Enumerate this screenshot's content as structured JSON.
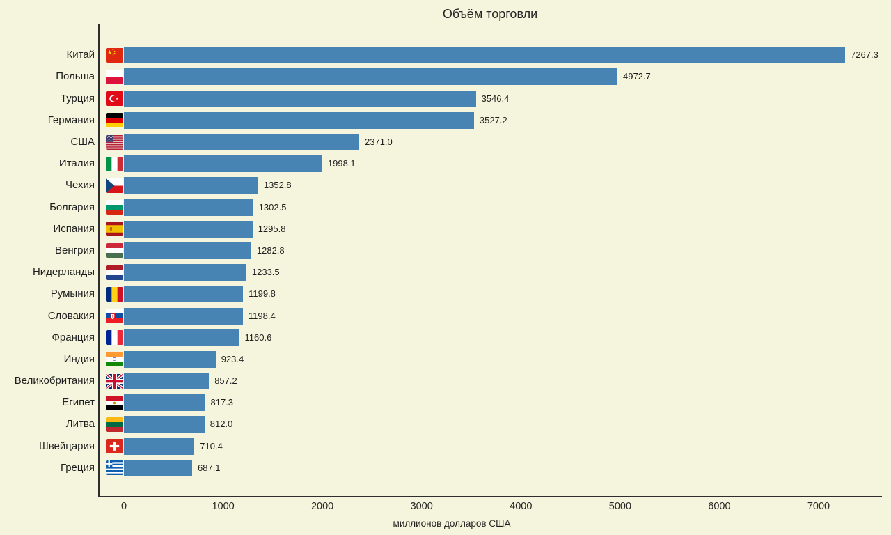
{
  "chart_data": {
    "type": "bar",
    "orientation": "horizontal",
    "title": "Объём торговли",
    "xlabel": "миллионов долларов США",
    "xticks": [
      0,
      1000,
      2000,
      3000,
      4000,
      5000,
      6000,
      7000
    ],
    "xlim": [
      0,
      7640
    ],
    "grid": false,
    "legend": "none",
    "bar_color": "#4784b4",
    "background_color": "#f4f5dc",
    "axis_color": "#2e2e2e",
    "value_label_format": "one-decimal",
    "categories": [
      "Китай",
      "Польша",
      "Турция",
      "Германия",
      "США",
      "Италия",
      "Чехия",
      "Болгария",
      "Испания",
      "Венгрия",
      "Нидерланды",
      "Румыния",
      "Словакия",
      "Франция",
      "Индия",
      "Великобритания",
      "Египет",
      "Литва",
      "Швейцария",
      "Греция"
    ],
    "values": [
      7267.3,
      4972.7,
      3546.4,
      3527.2,
      2371.0,
      1998.1,
      1352.8,
      1302.5,
      1295.8,
      1282.8,
      1233.5,
      1199.8,
      1198.4,
      1160.6,
      923.4,
      857.2,
      817.3,
      812.0,
      710.4,
      687.1
    ],
    "flag_codes": [
      "cn",
      "pl",
      "tr",
      "de",
      "us",
      "it",
      "cz",
      "bg",
      "es",
      "hu",
      "nl",
      "ro",
      "sk",
      "fr",
      "in",
      "gb",
      "eg",
      "lt",
      "ch",
      "gr"
    ]
  }
}
